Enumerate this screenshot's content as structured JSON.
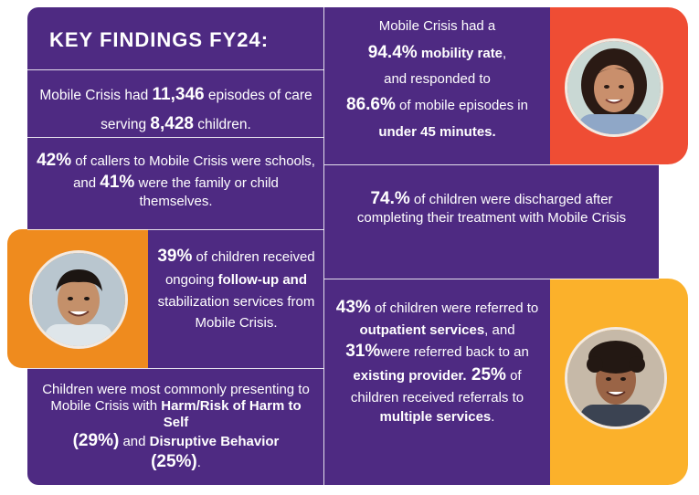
{
  "colors": {
    "purple": "#4e2a82",
    "red": "#ef4d34",
    "orange": "#ef8b1e",
    "gold": "#fbb12b"
  },
  "heading": "KEY FINDINGS FY24:",
  "f1": {
    "a": "Mobile Crisis had ",
    "n1": "11,346",
    "b": " episodes of care serving ",
    "n2": "8,428",
    "c": " children."
  },
  "f2": {
    "n1": "42%",
    "a": " of callers to Mobile Crisis were schools, and ",
    "n2": "41%",
    "b": " were the family or child themselves."
  },
  "f3": {
    "n1": "39%",
    "a": " of children received ongoing ",
    "b1": "follow-up and",
    "b2": " stabilization services from Mobile Crisis."
  },
  "f4": {
    "a": "Children were most commonly presenting to Mobile Crisis with ",
    "b1": "Harm/Risk of Harm to Self",
    "n1": "(29%)",
    "c": " and ",
    "b2": "Disruptive Behavior",
    "n2": "(25%)",
    "d": "."
  },
  "f5": {
    "a": "Mobile Crisis had a ",
    "n1": "94.4%",
    "b1": " mobility rate",
    ",": ",",
    "b": "and responded to ",
    "n2": "86.6%",
    "c": " of mobile episodes in ",
    "b2": "under 45 minutes."
  },
  "f6": {
    "n1": "74.%",
    "a": " of children were discharged after completing their treatment with Mobile Crisis"
  },
  "f7": {
    "n1": "43%",
    "a": " of children were referred to ",
    "b1": "outpatient services",
    ",": ",",
    "b": " and ",
    "n2": "31%",
    "c": "were referred back to an ",
    "b2": "existing provider.",
    "n3": " 25%",
    "d": " of children received referrals to ",
    "b3": "multiple services",
    "e": "."
  },
  "photos": [
    "girl-portrait",
    "boy-portrait",
    "teen-portrait"
  ]
}
